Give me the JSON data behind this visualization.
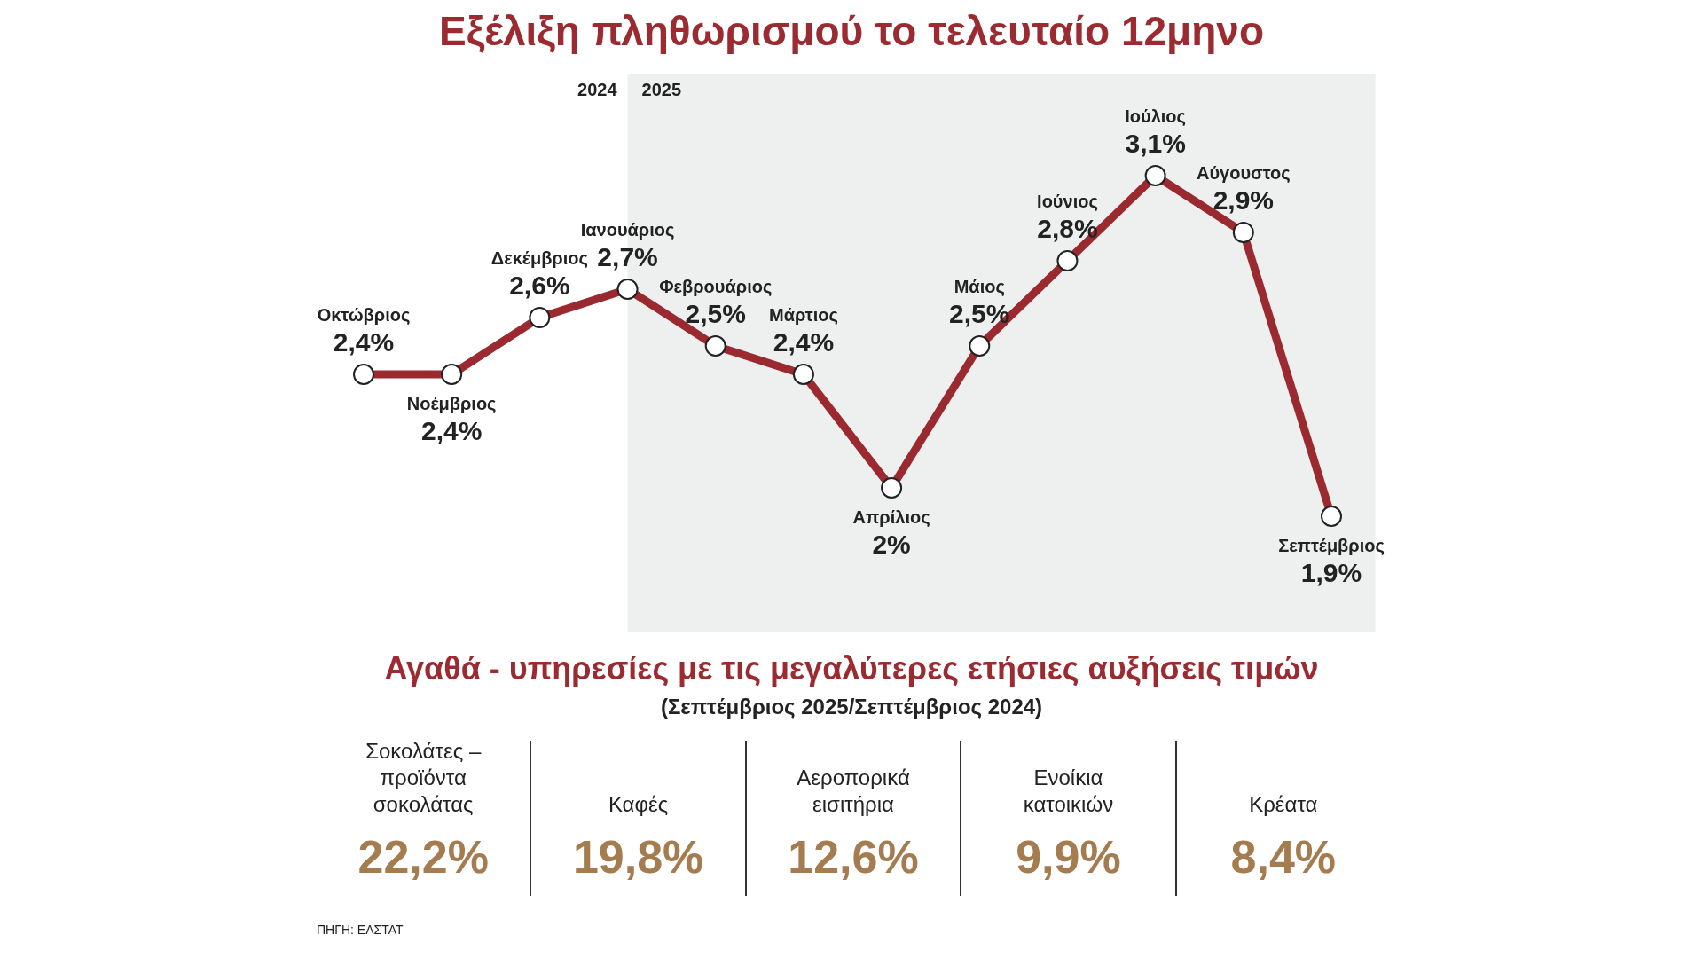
{
  "chart_data": [
    {
      "type": "line",
      "title": "Εξέλιξη πληθωρισμού το τελευταίο 12μηνο",
      "categories": [
        "Οκτώβριος",
        "Νοέμβριος",
        "Δεκέμβριος",
        "Ιανουάριος",
        "Φεβρουάριος",
        "Μάρτιος",
        "Απρίλιος",
        "Μάιος",
        "Ιούνιος",
        "Ιούλιος",
        "Αύγουστος",
        "Σεπτέμβριος"
      ],
      "series": [
        {
          "color": "#9b2a30",
          "values": [
            2.4,
            2.4,
            2.6,
            2.7,
            2.5,
            2.4,
            2.0,
            2.5,
            2.8,
            3.1,
            2.9,
            1.9
          ],
          "value_labels": [
            "2,4%",
            "2,4%",
            "2,6%",
            "2,7%",
            "2,5%",
            "2,4%",
            "2%",
            "2,5%",
            "2,8%",
            "3,1%",
            "2,9%",
            "1,9%"
          ]
        }
      ],
      "bands": [
        {
          "axis": "x",
          "from": "Ιανουάριος",
          "to": "Σεπτέμβριος",
          "label": "2025",
          "color": "#eeefef"
        }
      ],
      "annotations": [
        "2024"
      ],
      "marker": "circle",
      "legend": false,
      "tick_labels": false
    },
    {
      "type": "other",
      "title": "Αγαθά - υπηρεσίες με τις μεγαλύτερες ετήσιες αυξήσεις τιμών",
      "subtitle": "(Σεπτέμβριος 2025/Σεπτέμβριος 2024)",
      "categories": [
        "Σοκολάτες – προϊόντα σοκολάτας",
        "Καφές",
        "Αεροπορικά εισιτήρια",
        "Ενοίκια κατοικιών",
        "Κρέατα"
      ],
      "value_labels": [
        "22,2%",
        "19,8%",
        "12,6%",
        "9,9%",
        "8,4%"
      ],
      "color": "#a57c4f",
      "annotations": [
        "ΠΗΓΗ: ΕΛΣΤΑΤ"
      ]
    }
  ]
}
